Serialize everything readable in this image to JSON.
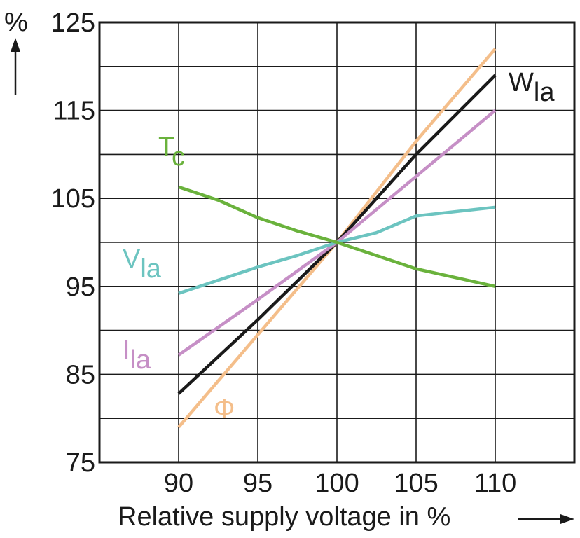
{
  "chart_data": {
    "type": "line",
    "xlabel": "Relative supply voltage in %",
    "ylabel": "%",
    "xlim": [
      85,
      115
    ],
    "ylim": [
      75,
      125
    ],
    "x_ticks": [
      90,
      95,
      100,
      105,
      110
    ],
    "y_ticks": [
      75,
      85,
      95,
      105,
      115,
      125
    ],
    "grid": true,
    "series": [
      {
        "name": "Φ",
        "color": "#f4be8a",
        "x": [
          90,
          95,
          100,
          105,
          110
        ],
        "y": [
          79,
          89.5,
          100,
          111.5,
          122
        ]
      },
      {
        "name": "W",
        "subscript": "la",
        "color": "#1a1a1a",
        "x": [
          90,
          95,
          100,
          105,
          110
        ],
        "y": [
          82.8,
          91.2,
          100,
          110,
          119
        ]
      },
      {
        "name": "I",
        "subscript": "la",
        "color": "#c68fc6",
        "x": [
          90,
          95,
          100,
          105,
          110
        ],
        "y": [
          87.2,
          93.5,
          100,
          107.5,
          115
        ]
      },
      {
        "name": "V",
        "subscript": "la",
        "color": "#6cc4c0",
        "x": [
          90,
          95,
          97.5,
          100,
          102.5,
          105,
          110
        ],
        "y": [
          94.2,
          97.2,
          98.5,
          100,
          101.1,
          103,
          104
        ]
      },
      {
        "name": "T",
        "subscript": "c",
        "color": "#6ab23c",
        "x": [
          90,
          92.5,
          95,
          97.5,
          100,
          105,
          110
        ],
        "y": [
          106.3,
          104.8,
          102.8,
          101.3,
          100,
          97,
          95
        ]
      }
    ]
  }
}
